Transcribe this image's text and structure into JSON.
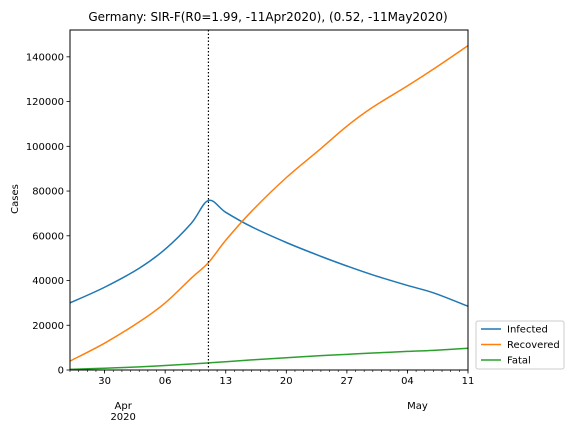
{
  "chart_data": {
    "type": "line",
    "title": "Germany: SIR-F(R0=1.99, -11Apr2020), (0.52, -11May2020)",
    "xlabel": "",
    "ylabel": "Cases",
    "x_start": "2020-03-26",
    "x_end": "2020-05-11",
    "ylim": [
      0,
      152000
    ],
    "y_ticks": [
      0,
      20000,
      40000,
      60000,
      80000,
      100000,
      120000,
      140000
    ],
    "x_ticks": [
      {
        "date": "2020-03-30",
        "label": "30"
      },
      {
        "date": "2020-04-06",
        "label": "06"
      },
      {
        "date": "2020-04-13",
        "label": "13"
      },
      {
        "date": "2020-04-20",
        "label": "20"
      },
      {
        "date": "2020-04-27",
        "label": "27"
      },
      {
        "date": "2020-05-04",
        "label": "04"
      },
      {
        "date": "2020-05-11",
        "label": "11"
      }
    ],
    "month_labels": [
      {
        "date": "2020-04-06",
        "label": "Apr",
        "sublabel": "2020"
      },
      {
        "date": "2020-05-04",
        "label": "May",
        "sublabel": ""
      }
    ],
    "change_point": "2020-04-11",
    "grid": false,
    "legend_position": "outside-right-bottom",
    "series": [
      {
        "name": "Infected",
        "color": "#1f77b4",
        "points": [
          [
            "2020-03-26",
            30000
          ],
          [
            "2020-03-30",
            37000
          ],
          [
            "2020-04-03",
            45500
          ],
          [
            "2020-04-06",
            54000
          ],
          [
            "2020-04-09",
            65500
          ],
          [
            "2020-04-11",
            75800
          ],
          [
            "2020-04-13",
            70500
          ],
          [
            "2020-04-16",
            64000
          ],
          [
            "2020-04-20",
            57000
          ],
          [
            "2020-04-24",
            50800
          ],
          [
            "2020-04-27",
            46500
          ],
          [
            "2020-04-30",
            42500
          ],
          [
            "2020-05-04",
            37800
          ],
          [
            "2020-05-07",
            34500
          ],
          [
            "2020-05-11",
            28500
          ]
        ]
      },
      {
        "name": "Recovered",
        "color": "#ff7f0e",
        "points": [
          [
            "2020-03-26",
            4000
          ],
          [
            "2020-03-30",
            12000
          ],
          [
            "2020-04-03",
            21500
          ],
          [
            "2020-04-06",
            30000
          ],
          [
            "2020-04-09",
            41000
          ],
          [
            "2020-04-11",
            48000
          ],
          [
            "2020-04-13",
            58000
          ],
          [
            "2020-04-16",
            71000
          ],
          [
            "2020-04-20",
            86000
          ],
          [
            "2020-04-24",
            99000
          ],
          [
            "2020-04-27",
            109000
          ],
          [
            "2020-04-30",
            117500
          ],
          [
            "2020-05-04",
            127000
          ],
          [
            "2020-05-07",
            134500
          ],
          [
            "2020-05-11",
            145000
          ]
        ]
      },
      {
        "name": "Fatal",
        "color": "#2ca02c",
        "points": [
          [
            "2020-03-26",
            300
          ],
          [
            "2020-03-30",
            800
          ],
          [
            "2020-04-03",
            1400
          ],
          [
            "2020-04-06",
            2000
          ],
          [
            "2020-04-09",
            2700
          ],
          [
            "2020-04-11",
            3200
          ],
          [
            "2020-04-13",
            3700
          ],
          [
            "2020-04-16",
            4500
          ],
          [
            "2020-04-20",
            5500
          ],
          [
            "2020-04-24",
            6400
          ],
          [
            "2020-04-27",
            7000
          ],
          [
            "2020-04-30",
            7600
          ],
          [
            "2020-05-04",
            8300
          ],
          [
            "2020-05-07",
            8800
          ],
          [
            "2020-05-11",
            9700
          ]
        ]
      }
    ]
  }
}
